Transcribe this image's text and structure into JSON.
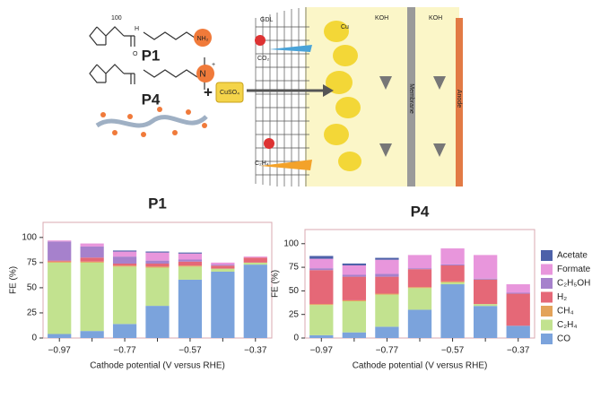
{
  "schematic": {
    "p1_label": "P1",
    "p4_label": "P4",
    "repeat": "100",
    "nh": "H",
    "amine": "NH₂",
    "quat": "N",
    "charge": "+",
    "oxygen": "O",
    "plus": "+",
    "salt": "CuSO₄",
    "gdl": "GDL",
    "cu": "Cu",
    "co2": "CO₂",
    "c2h4": "C₂H₄",
    "koh1": "KOH",
    "koh2": "KOH",
    "membrane": "Membrane",
    "anode": "Anode"
  },
  "chart_data": [
    {
      "type": "stacked-bar",
      "title": "P1",
      "x_label": "Cathode potential (V versus RHE)",
      "y_label": "FE (%)",
      "categories": [
        "−0.97",
        null,
        "−0.77",
        null,
        "−0.57",
        null,
        "−0.37"
      ],
      "ylim": [
        0,
        115
      ],
      "yticks": [
        0,
        25,
        50,
        75,
        100
      ],
      "series": [
        {
          "color": "#7ba3dc",
          "values": [
            4,
            7,
            14,
            32,
            58,
            66,
            73
          ]
        },
        {
          "color": "#c2e28f",
          "values": [
            71,
            68,
            57,
            38,
            13,
            3,
            2
          ]
        },
        {
          "color": "#e3a35a",
          "values": [
            1,
            1,
            1,
            1,
            1,
            0,
            0
          ]
        },
        {
          "color": "#e56877",
          "values": [
            1,
            4,
            2,
            3,
            4,
            3,
            5
          ]
        },
        {
          "color": "#a681cc",
          "values": [
            19,
            11,
            7,
            3,
            2,
            1,
            0
          ]
        },
        {
          "color": "#e896dc",
          "values": [
            1,
            3,
            5,
            8,
            6,
            2,
            1
          ]
        },
        {
          "color": "#4d61a9",
          "values": [
            0,
            0,
            1,
            1,
            1,
            0,
            0
          ]
        }
      ]
    },
    {
      "type": "stacked-bar",
      "title": "P4",
      "x_label": "Cathode potential (V versus RHE)",
      "y_label": "FE (%)",
      "categories": [
        "−0.97",
        null,
        "−0.77",
        null,
        "−0.57",
        null,
        "−0.37"
      ],
      "ylim": [
        0,
        115
      ],
      "yticks": [
        0,
        25,
        50,
        75,
        100
      ],
      "series": [
        {
          "name": "CO",
          "color": "#7ba3dc",
          "values": [
            3,
            6,
            12,
            30,
            57,
            34,
            13
          ]
        },
        {
          "name": "C₂H₄",
          "color": "#c2e28f",
          "values": [
            32,
            33,
            34,
            23,
            2,
            2,
            0
          ]
        },
        {
          "name": "CH₄",
          "color": "#e3a35a",
          "values": [
            1,
            1,
            1,
            1,
            1,
            0,
            0
          ]
        },
        {
          "name": "H₂",
          "color": "#e56877",
          "values": [
            36,
            25,
            18,
            19,
            17,
            26,
            34
          ]
        },
        {
          "name": "C₂H₅OH",
          "color": "#a681cc",
          "values": [
            2,
            2,
            3,
            1,
            1,
            1,
            1
          ]
        },
        {
          "name": "Formate",
          "color": "#e896dc",
          "values": [
            10,
            10,
            15,
            14,
            17,
            25,
            9
          ]
        },
        {
          "name": "Acetate",
          "color": "#4d61a9",
          "values": [
            3,
            2,
            2,
            0,
            0,
            0,
            0
          ]
        }
      ]
    }
  ]
}
